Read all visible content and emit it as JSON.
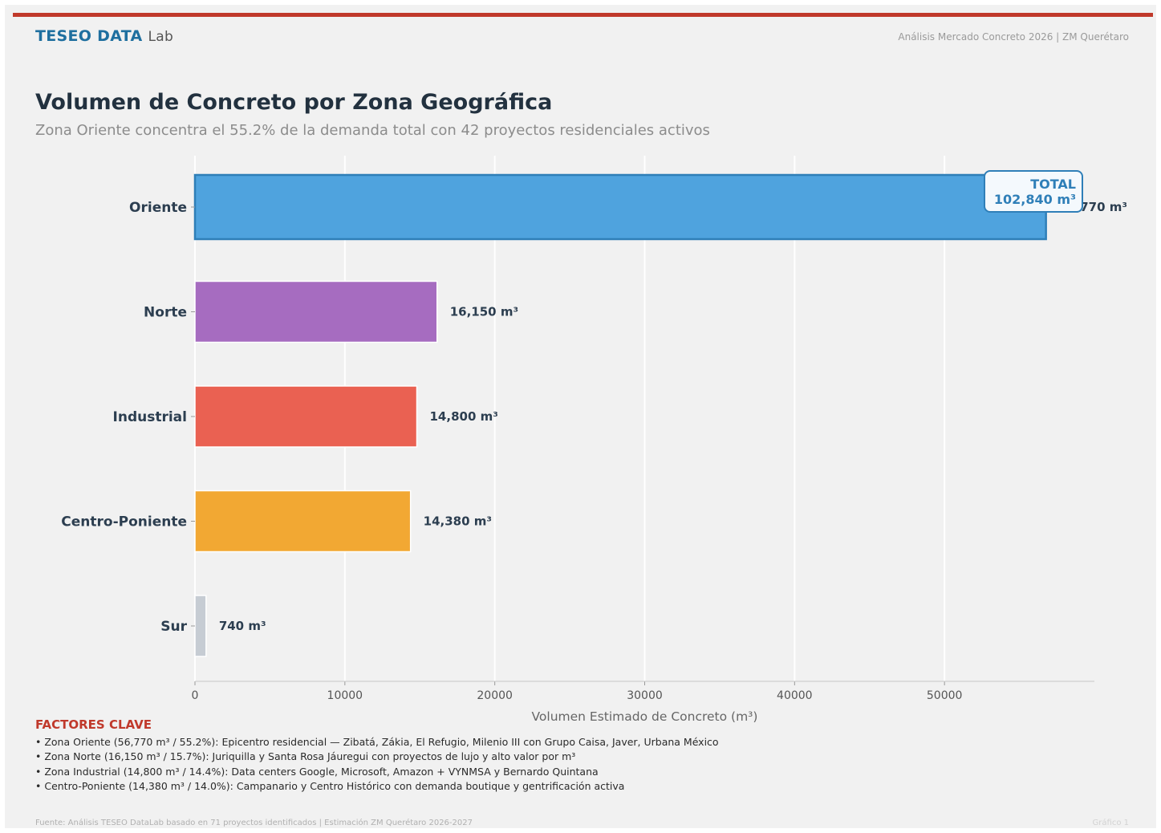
{
  "header": {
    "brand_main": "TESEO DATA",
    "brand_sub": "Lab",
    "right_text": "Análisis Mercado Concreto 2026 | ZM Querétaro"
  },
  "chart_data": {
    "type": "bar",
    "orientation": "horizontal",
    "title": "Volumen de Concreto por Zona Geográfica",
    "subtitle": "Zona Oriente concentra el 55.2% de la demanda total con 42 proyectos residenciales activos",
    "xlabel": "Volumen Estimado de Concreto (m³)",
    "ylabel": "",
    "xlim": [
      0,
      60000
    ],
    "xticks": [
      0,
      10000,
      20000,
      30000,
      40000,
      50000
    ],
    "grid": true,
    "categories": [
      "Oriente",
      "Norte",
      "Industrial",
      "Centro-Poniente",
      "Sur"
    ],
    "values": [
      56770,
      16150,
      14800,
      14380,
      740
    ],
    "data_labels": [
      "56,770 m³",
      "16,150 m³",
      "14,800 m³",
      "14,380 m³",
      "740 m³"
    ],
    "colors": [
      "#4fa3de",
      "#a66cc0",
      "#ea6152",
      "#f2a833",
      "#c6ccd3"
    ],
    "total_box": {
      "label": "TOTAL",
      "value": "102,840 m³"
    }
  },
  "factors": {
    "title": "FACTORES CLAVE",
    "items": [
      "• Zona Oriente (56,770 m³ / 55.2%): Epicentro residencial — Zibatá, Zákia, El Refugio, Milenio III con Grupo Caisa, Javer, Urbana México",
      "• Zona Norte (16,150 m³ / 15.7%): Juriquilla y Santa Rosa Jáuregui con proyectos de lujo y alto valor por m³",
      "• Zona Industrial (14,800 m³ / 14.4%): Data centers Google, Microsoft, Amazon + VYNMSA y Bernardo Quintana",
      "• Centro-Poniente (14,380 m³ / 14.0%): Campanario y Centro Histórico con demanda boutique y gentrificación activa"
    ]
  },
  "footer": {
    "source": "Fuente: Análisis TESEO DataLab basado en 71 proyectos identificados | Estimación ZM Querétaro 2026-2027",
    "figure_label": "Gráfico 1"
  }
}
